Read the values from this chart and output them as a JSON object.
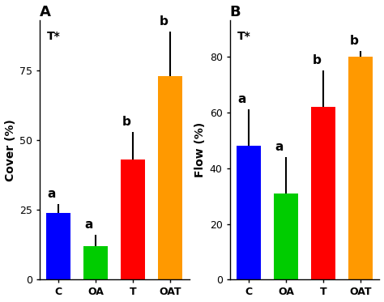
{
  "panel_A": {
    "title": "A",
    "ylabel": "Cover (%)",
    "categories": [
      "C",
      "OA",
      "T",
      "OAT"
    ],
    "values": [
      24,
      12,
      43,
      73
    ],
    "errors": [
      3,
      4,
      10,
      16
    ],
    "colors": [
      "#0000FF",
      "#00CC00",
      "#FF0000",
      "#FF9900"
    ],
    "letters": [
      "a",
      "a",
      "b",
      "b"
    ],
    "ylim": [
      0,
      93
    ],
    "yticks": [
      0,
      25,
      50,
      75
    ],
    "t_star_label": "T*"
  },
  "panel_B": {
    "title": "B",
    "ylabel": "Flow (%)",
    "categories": [
      "C",
      "OA",
      "T",
      "OAT"
    ],
    "values": [
      48,
      31,
      62,
      80
    ],
    "errors": [
      13,
      13,
      13,
      2
    ],
    "colors": [
      "#0000FF",
      "#00CC00",
      "#FF0000",
      "#FF9900"
    ],
    "letters": [
      "a",
      "a",
      "b",
      "b"
    ],
    "ylim": [
      0,
      93
    ],
    "yticks": [
      0,
      20,
      40,
      60,
      80
    ],
    "t_star_label": "T*"
  },
  "bar_width": 0.65,
  "fig_bg": "#FFFFFF",
  "label_fontsize": 10,
  "tick_fontsize": 9,
  "title_fontsize": 13,
  "letter_fontsize": 11,
  "tstar_fontsize": 10
}
